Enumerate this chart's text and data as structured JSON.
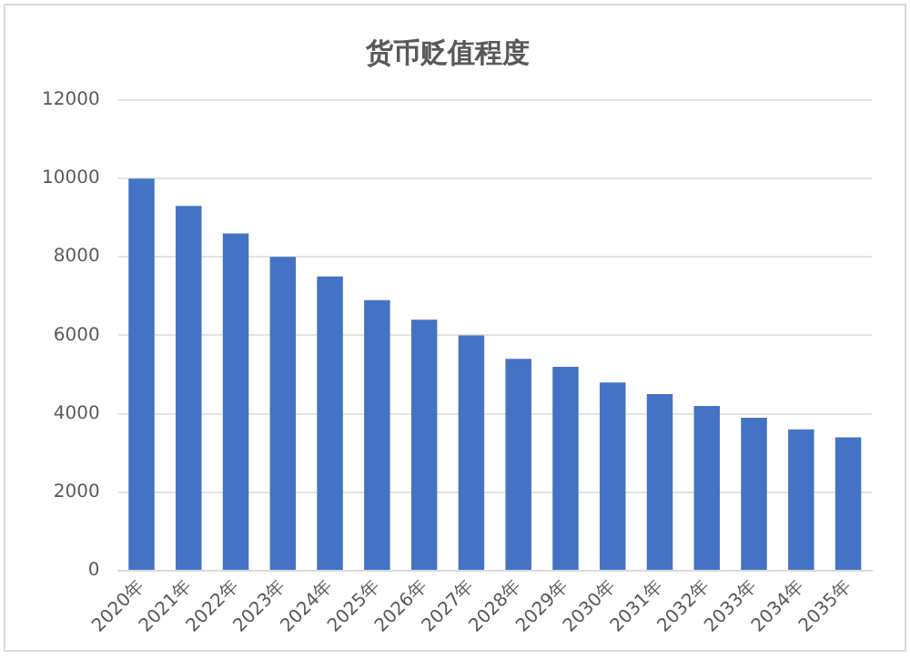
{
  "chart_data": {
    "type": "bar",
    "title": "货币贬值程度",
    "categories": [
      "2020年",
      "2021年",
      "2022年",
      "2023年",
      "2024年",
      "2025年",
      "2026年",
      "2027年",
      "2028年",
      "2029年",
      "2030年",
      "2031年",
      "2032年",
      "2033年",
      "2034年",
      "2035年"
    ],
    "values": [
      10000,
      9300,
      8600,
      8000,
      7500,
      6900,
      6400,
      6000,
      5400,
      5200,
      4800,
      4500,
      4200,
      3900,
      3600,
      3400
    ],
    "color": "#4472c4",
    "ylim": [
      0,
      12000
    ],
    "yticks": [
      0,
      2000,
      4000,
      6000,
      8000,
      10000,
      12000
    ],
    "grid": "y"
  }
}
